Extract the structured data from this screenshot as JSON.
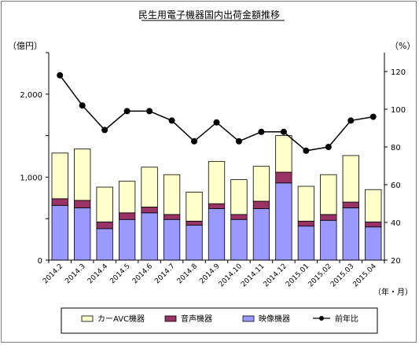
{
  "chart_data": {
    "type": "bar",
    "title": "民生用電子機器国内出荷金額推移",
    "ylabel_left": "（億円）",
    "ylabel_right": "（%）",
    "xlabel": "（年・月）",
    "categories": [
      "2014.2",
      "2014.3",
      "2014.4",
      "2014.5",
      "2014.6",
      "2014.7",
      "2014.8",
      "2014.9",
      "2014.10",
      "2014.11",
      "2014.12",
      "2015.01",
      "2015.02",
      "2015.03",
      "2015.04"
    ],
    "ylim_left": [
      0,
      2500
    ],
    "yticks_left": [
      0,
      1000,
      2000
    ],
    "ytick_labels_left": [
      "0",
      "1,000",
      "2,000"
    ],
    "ylim_right": [
      20,
      130
    ],
    "yticks_right": [
      20,
      40,
      60,
      80,
      100,
      120
    ],
    "ytick_labels_right": [
      "20",
      "40",
      "60",
      "80",
      "100",
      "120"
    ],
    "grid": false,
    "legend_position": "bottom",
    "stacked_series": [
      {
        "name": "映像機器",
        "color": "#9999ff",
        "values": [
          660,
          630,
          380,
          490,
          570,
          490,
          420,
          620,
          490,
          620,
          930,
          410,
          480,
          630,
          400
        ]
      },
      {
        "name": "音声機器",
        "color": "#993366",
        "values": [
          80,
          90,
          80,
          80,
          70,
          60,
          50,
          60,
          60,
          90,
          130,
          60,
          70,
          70,
          60
        ]
      },
      {
        "name": "カーAVC機器",
        "color": "#ffffcc",
        "values": [
          550,
          620,
          420,
          380,
          480,
          480,
          350,
          510,
          420,
          420,
          440,
          420,
          480,
          560,
          390
        ]
      }
    ],
    "line_series": {
      "name": "前年比",
      "color": "#000000",
      "axis": "right",
      "values": [
        118,
        102,
        89,
        99,
        99,
        94,
        83,
        93,
        83,
        88,
        88,
        78,
        80,
        94,
        96
      ]
    }
  },
  "legend": [
    {
      "key": "car",
      "label": "カーAVC機器",
      "color": "#ffffcc"
    },
    {
      "key": "audio",
      "label": "音声機器",
      "color": "#993366"
    },
    {
      "key": "video",
      "label": "映像機器",
      "color": "#9999ff"
    },
    {
      "key": "yoy",
      "label": "前年比",
      "color": "#000000"
    }
  ]
}
